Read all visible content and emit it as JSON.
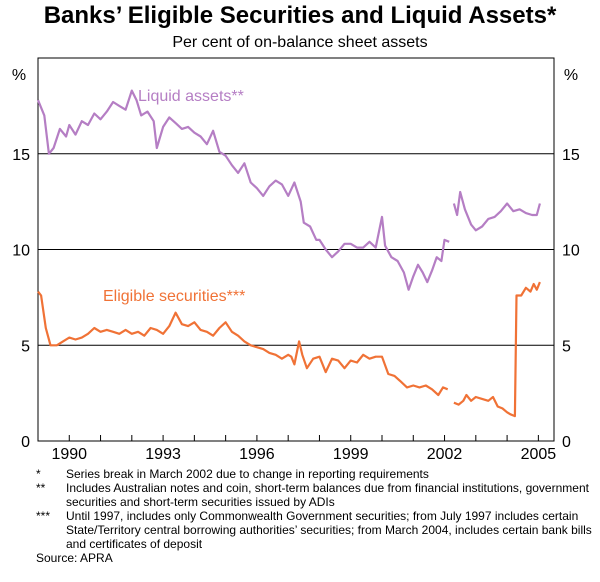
{
  "title": "Banks’ Eligible Securities and Liquid Assets*",
  "subtitle": "Per cent of on-balance sheet assets",
  "chart_data": {
    "type": "line",
    "ylabel_left": "%",
    "ylabel_right": "%",
    "ylim": [
      0,
      20
    ],
    "yticks": [
      0,
      5,
      10,
      15
    ],
    "xlim": [
      1989.0,
      2005.5
    ],
    "xticks": [
      1990,
      1993,
      1996,
      1999,
      2002,
      2005
    ],
    "xtick_labels": [
      "1990",
      "1993",
      "1996",
      "1999",
      "2002",
      "2005"
    ],
    "grid": "horizontal",
    "colors": {
      "liquid": "#B57EC4",
      "eligible": "#F07236"
    },
    "series": [
      {
        "name": "Liquid assets**",
        "key": "liquid",
        "segments": [
          [
            [
              1989.0,
              17.8
            ],
            [
              1989.2,
              17.0
            ],
            [
              1989.35,
              15.0
            ],
            [
              1989.5,
              15.3
            ],
            [
              1989.7,
              16.3
            ],
            [
              1989.9,
              15.9
            ],
            [
              1990.0,
              16.5
            ],
            [
              1990.2,
              16.0
            ],
            [
              1990.4,
              16.7
            ],
            [
              1990.6,
              16.5
            ],
            [
              1990.8,
              17.1
            ],
            [
              1991.0,
              16.8
            ],
            [
              1991.2,
              17.2
            ],
            [
              1991.4,
              17.7
            ],
            [
              1991.6,
              17.5
            ],
            [
              1991.8,
              17.3
            ],
            [
              1992.0,
              18.3
            ],
            [
              1992.15,
              17.8
            ],
            [
              1992.3,
              17.0
            ],
            [
              1992.5,
              17.2
            ],
            [
              1992.7,
              16.7
            ],
            [
              1992.8,
              15.3
            ],
            [
              1993.0,
              16.4
            ],
            [
              1993.2,
              16.9
            ],
            [
              1993.4,
              16.6
            ],
            [
              1993.6,
              16.3
            ],
            [
              1993.8,
              16.4
            ],
            [
              1994.0,
              16.1
            ],
            [
              1994.2,
              15.9
            ],
            [
              1994.4,
              15.5
            ],
            [
              1994.6,
              16.2
            ],
            [
              1994.8,
              15.1
            ],
            [
              1995.0,
              14.9
            ],
            [
              1995.2,
              14.4
            ],
            [
              1995.4,
              14.0
            ],
            [
              1995.6,
              14.5
            ],
            [
              1995.8,
              13.5
            ],
            [
              1996.0,
              13.2
            ],
            [
              1996.2,
              12.8
            ],
            [
              1996.4,
              13.3
            ],
            [
              1996.6,
              13.6
            ],
            [
              1996.8,
              13.4
            ],
            [
              1997.0,
              12.8
            ],
            [
              1997.2,
              13.5
            ],
            [
              1997.4,
              12.5
            ],
            [
              1997.5,
              11.4
            ],
            [
              1997.7,
              11.2
            ],
            [
              1997.9,
              10.5
            ],
            [
              1998.0,
              10.5
            ],
            [
              1998.2,
              10.0
            ],
            [
              1998.4,
              9.6
            ],
            [
              1998.6,
              9.9
            ],
            [
              1998.8,
              10.3
            ],
            [
              1999.0,
              10.3
            ],
            [
              1999.2,
              10.1
            ],
            [
              1999.4,
              10.1
            ],
            [
              1999.6,
              10.4
            ],
            [
              1999.8,
              10.1
            ],
            [
              2000.0,
              11.7
            ],
            [
              2000.1,
              10.2
            ],
            [
              2000.3,
              9.6
            ],
            [
              2000.5,
              9.4
            ],
            [
              2000.7,
              8.8
            ],
            [
              2000.85,
              7.9
            ],
            [
              2001.0,
              8.6
            ],
            [
              2001.15,
              9.2
            ],
            [
              2001.3,
              8.8
            ],
            [
              2001.45,
              8.3
            ],
            [
              2001.6,
              8.9
            ],
            [
              2001.75,
              9.6
            ],
            [
              2001.9,
              9.4
            ],
            [
              2002.0,
              10.5
            ],
            [
              2002.15,
              10.4
            ]
          ],
          [
            [
              2002.3,
              12.4
            ],
            [
              2002.4,
              11.8
            ],
            [
              2002.5,
              13.0
            ],
            [
              2002.65,
              12.1
            ],
            [
              2002.85,
              11.3
            ],
            [
              2003.0,
              11.0
            ],
            [
              2003.2,
              11.2
            ],
            [
              2003.4,
              11.6
            ],
            [
              2003.6,
              11.7
            ],
            [
              2003.8,
              12.0
            ],
            [
              2004.0,
              12.4
            ],
            [
              2004.2,
              12.0
            ],
            [
              2004.4,
              12.1
            ],
            [
              2004.6,
              11.9
            ],
            [
              2004.8,
              11.8
            ],
            [
              2004.95,
              11.8
            ],
            [
              2005.05,
              12.4
            ]
          ]
        ]
      },
      {
        "name": "Eligible securities***",
        "key": "eligible",
        "segments": [
          [
            [
              1989.0,
              7.8
            ],
            [
              1989.1,
              7.6
            ],
            [
              1989.25,
              5.9
            ],
            [
              1989.4,
              5.0
            ],
            [
              1989.6,
              5.0
            ],
            [
              1989.8,
              5.2
            ],
            [
              1990.0,
              5.4
            ],
            [
              1990.2,
              5.3
            ],
            [
              1990.4,
              5.4
            ],
            [
              1990.6,
              5.6
            ],
            [
              1990.8,
              5.9
            ],
            [
              1991.0,
              5.7
            ],
            [
              1991.2,
              5.8
            ],
            [
              1991.4,
              5.7
            ],
            [
              1991.6,
              5.6
            ],
            [
              1991.8,
              5.8
            ],
            [
              1992.0,
              5.6
            ],
            [
              1992.2,
              5.7
            ],
            [
              1992.4,
              5.5
            ],
            [
              1992.6,
              5.9
            ],
            [
              1992.8,
              5.8
            ],
            [
              1993.0,
              5.6
            ],
            [
              1993.2,
              6.0
            ],
            [
              1993.4,
              6.7
            ],
            [
              1993.6,
              6.1
            ],
            [
              1993.8,
              6.0
            ],
            [
              1994.0,
              6.2
            ],
            [
              1994.2,
              5.8
            ],
            [
              1994.4,
              5.7
            ],
            [
              1994.6,
              5.5
            ],
            [
              1994.8,
              5.9
            ],
            [
              1995.0,
              6.2
            ],
            [
              1995.2,
              5.7
            ],
            [
              1995.4,
              5.5
            ],
            [
              1995.6,
              5.2
            ],
            [
              1995.8,
              5.0
            ],
            [
              1996.0,
              4.9
            ],
            [
              1996.2,
              4.8
            ],
            [
              1996.4,
              4.6
            ],
            [
              1996.6,
              4.5
            ],
            [
              1996.8,
              4.3
            ],
            [
              1997.0,
              4.5
            ],
            [
              1997.1,
              4.4
            ],
            [
              1997.2,
              4.0
            ],
            [
              1997.35,
              5.2
            ],
            [
              1997.45,
              4.5
            ],
            [
              1997.6,
              3.8
            ],
            [
              1997.8,
              4.3
            ],
            [
              1998.0,
              4.4
            ],
            [
              1998.2,
              3.6
            ],
            [
              1998.4,
              4.3
            ],
            [
              1998.6,
              4.2
            ],
            [
              1998.8,
              3.8
            ],
            [
              1999.0,
              4.2
            ],
            [
              1999.2,
              4.1
            ],
            [
              1999.4,
              4.5
            ],
            [
              1999.6,
              4.3
            ],
            [
              1999.8,
              4.4
            ],
            [
              2000.0,
              4.4
            ],
            [
              2000.2,
              3.5
            ],
            [
              2000.4,
              3.4
            ],
            [
              2000.6,
              3.1
            ],
            [
              2000.8,
              2.8
            ],
            [
              2001.0,
              2.9
            ],
            [
              2001.2,
              2.8
            ],
            [
              2001.4,
              2.9
            ],
            [
              2001.6,
              2.7
            ],
            [
              2001.8,
              2.4
            ],
            [
              2001.95,
              2.8
            ],
            [
              2002.1,
              2.7
            ]
          ],
          [
            [
              2002.3,
              2.0
            ],
            [
              2002.45,
              1.9
            ],
            [
              2002.6,
              2.1
            ],
            [
              2002.7,
              2.4
            ],
            [
              2002.85,
              2.1
            ],
            [
              2003.0,
              2.3
            ],
            [
              2003.2,
              2.2
            ],
            [
              2003.4,
              2.1
            ],
            [
              2003.55,
              2.3
            ],
            [
              2003.7,
              1.8
            ],
            [
              2003.85,
              1.7
            ],
            [
              2004.0,
              1.5
            ],
            [
              2004.1,
              1.4
            ],
            [
              2004.25,
              1.3
            ],
            [
              2004.3,
              7.6
            ],
            [
              2004.45,
              7.6
            ],
            [
              2004.6,
              8.0
            ],
            [
              2004.75,
              7.8
            ],
            [
              2004.85,
              8.2
            ],
            [
              2004.95,
              7.9
            ],
            [
              2005.05,
              8.3
            ]
          ]
        ]
      }
    ]
  },
  "notes": [
    {
      "mark": "*",
      "text": "Series break in March 2002 due to change in reporting requirements"
    },
    {
      "mark": "**",
      "text": "Includes Australian notes and coin, short-term balances due from financial institutions, government securities and short-term securities issued by ADIs"
    },
    {
      "mark": "***",
      "text": "Until 1997, includes only Commonwealth Government securities; from July 1997 includes certain State/Territory central borrowing authorities’ securities; from March 2004, includes certain bank bills and certificates of deposit"
    }
  ],
  "source": "Source: APRA"
}
